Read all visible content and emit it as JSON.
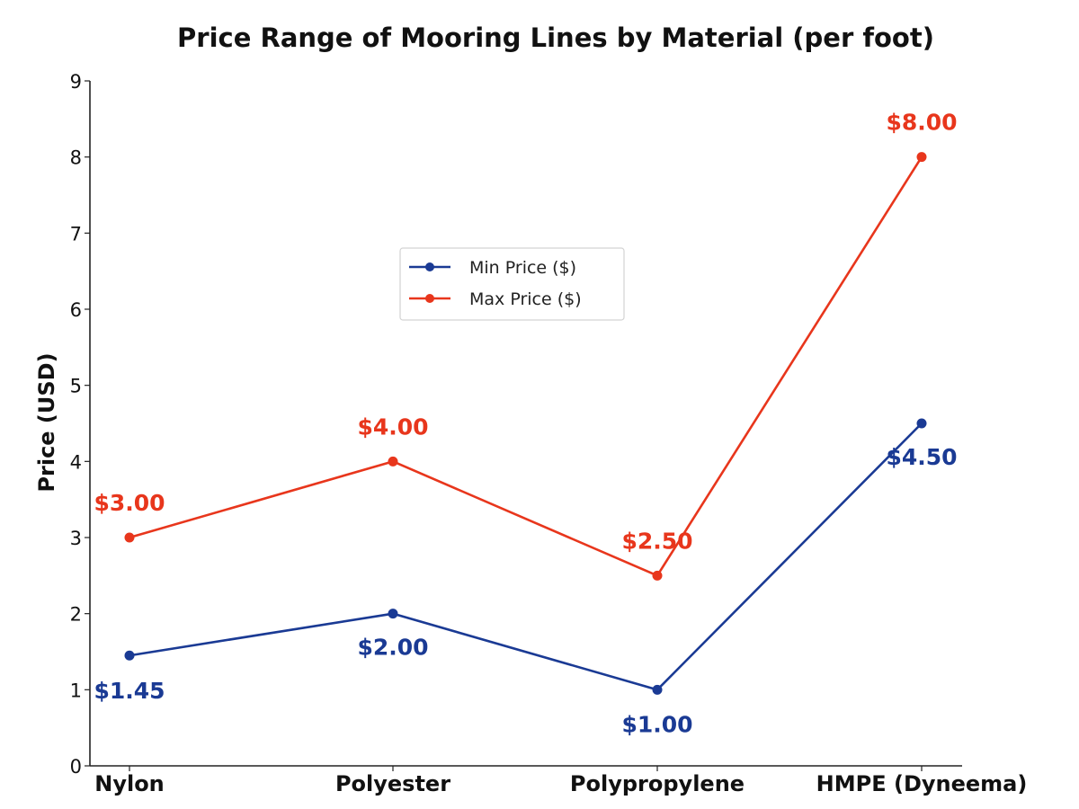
{
  "chart_data": {
    "type": "line",
    "title": "Price Range of Mooring Lines by Material (per foot)",
    "xlabel": "",
    "ylabel": "Price (USD)",
    "categories": [
      "Nylon",
      "Polyester",
      "Polypropylene",
      "HMPE (Dyneema)"
    ],
    "ylim": [
      0,
      9
    ],
    "yticks": [
      "0",
      "1",
      "2",
      "3",
      "4",
      "5",
      "6",
      "7",
      "8",
      "9"
    ],
    "grid": false,
    "legend_position": "upper-center",
    "series": [
      {
        "name": "Min Price ($)",
        "color": "#1a3a94",
        "values": [
          1.45,
          2.0,
          1.0,
          4.5
        ],
        "labels": [
          "$1.45",
          "$2.00",
          "$1.00",
          "$4.50"
        ]
      },
      {
        "name": "Max Price ($)",
        "color": "#e8361c",
        "values": [
          3.0,
          4.0,
          2.5,
          8.0
        ],
        "labels": [
          "$3.00",
          "$4.00",
          "$2.50",
          "$8.00"
        ]
      }
    ]
  }
}
